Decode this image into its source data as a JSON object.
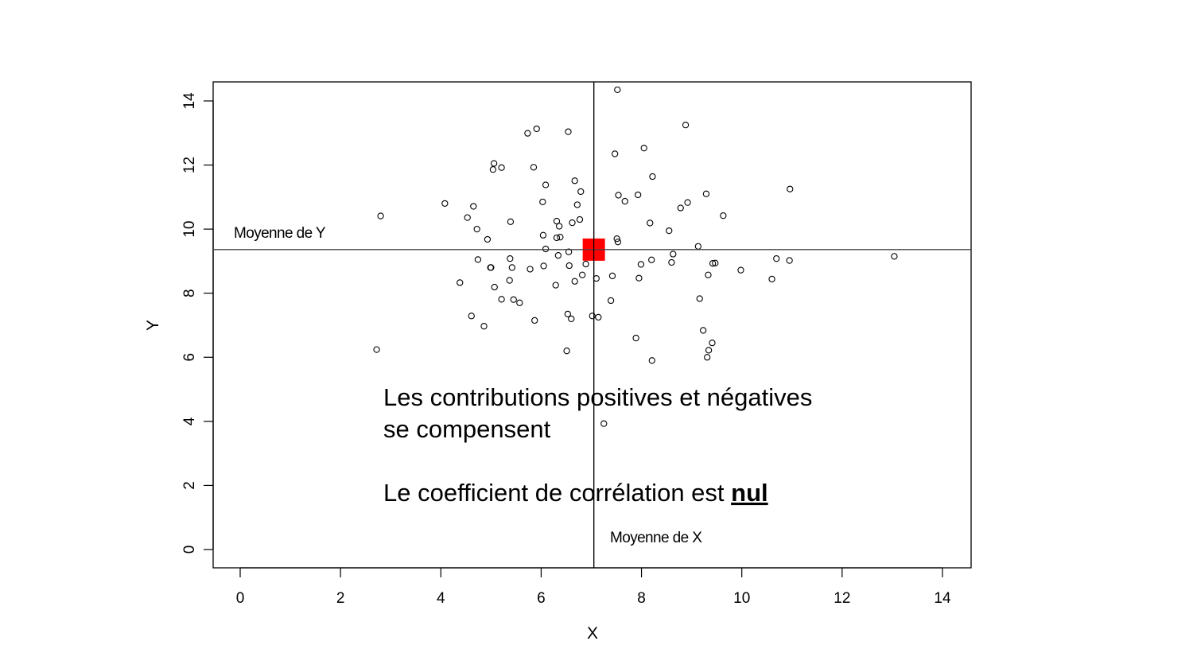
{
  "chart_data": {
    "type": "scatter",
    "title": "",
    "xlabel": "X",
    "ylabel": "Y",
    "xlim": [
      -0.5,
      14.5
    ],
    "ylim": [
      -0.5,
      14.5
    ],
    "xticks": [
      0,
      2,
      4,
      6,
      8,
      10,
      12,
      14
    ],
    "yticks": [
      0,
      2,
      4,
      6,
      8,
      10,
      12,
      14
    ],
    "grid": false,
    "mean_x": 7.05,
    "mean_y": 9.36,
    "mean_x_label": "Moyenne de X",
    "mean_y_label": "Moyenne de Y",
    "mean_point_color": "#ff0000",
    "annotation_line1": "Les contributions positives et négatives",
    "annotation_line2": "se compensent",
    "annotation_line3_prefix": "Le coefficient de corrélation est ",
    "annotation_line3_emphasis": "nul",
    "points": [
      [
        7.52,
        14.35
      ],
      [
        8.88,
        13.25
      ],
      [
        5.91,
        13.13
      ],
      [
        5.73,
        12.99
      ],
      [
        6.54,
        13.04
      ],
      [
        5.06,
        12.05
      ],
      [
        5.21,
        11.92
      ],
      [
        5.04,
        11.86
      ],
      [
        5.85,
        11.93
      ],
      [
        7.47,
        12.35
      ],
      [
        8.05,
        12.53
      ],
      [
        8.22,
        11.64
      ],
      [
        6.67,
        11.51
      ],
      [
        6.09,
        11.38
      ],
      [
        6.79,
        11.17
      ],
      [
        7.54,
        11.06
      ],
      [
        7.67,
        10.87
      ],
      [
        7.93,
        11.07
      ],
      [
        9.29,
        11.1
      ],
      [
        10.96,
        11.25
      ],
      [
        4.08,
        10.8
      ],
      [
        4.65,
        10.71
      ],
      [
        6.03,
        10.85
      ],
      [
        6.72,
        10.76
      ],
      [
        8.78,
        10.66
      ],
      [
        8.92,
        10.83
      ],
      [
        2.8,
        10.41
      ],
      [
        4.53,
        10.36
      ],
      [
        5.39,
        10.23
      ],
      [
        6.31,
        10.25
      ],
      [
        6.62,
        10.2
      ],
      [
        6.77,
        10.3
      ],
      [
        8.17,
        10.19
      ],
      [
        9.63,
        10.42
      ],
      [
        4.72,
        10.0
      ],
      [
        6.36,
        10.09
      ],
      [
        8.55,
        9.95
      ],
      [
        4.93,
        9.68
      ],
      [
        6.04,
        9.81
      ],
      [
        6.31,
        9.73
      ],
      [
        6.38,
        9.75
      ],
      [
        7.51,
        9.7
      ],
      [
        7.53,
        9.6
      ],
      [
        9.13,
        9.46
      ],
      [
        6.09,
        9.38
      ],
      [
        6.55,
        9.29
      ],
      [
        6.34,
        9.18
      ],
      [
        8.63,
        9.22
      ],
      [
        4.74,
        9.05
      ],
      [
        5.38,
        9.08
      ],
      [
        6.89,
        8.91
      ],
      [
        7.99,
        8.9
      ],
      [
        8.2,
        9.04
      ],
      [
        9.42,
        8.93
      ],
      [
        9.47,
        8.94
      ],
      [
        10.69,
        9.08
      ],
      [
        10.95,
        9.02
      ],
      [
        13.04,
        9.15
      ],
      [
        4.99,
        8.8
      ],
      [
        5.0,
        8.8
      ],
      [
        5.42,
        8.8
      ],
      [
        5.78,
        8.75
      ],
      [
        6.05,
        8.85
      ],
      [
        6.56,
        8.86
      ],
      [
        8.6,
        8.96
      ],
      [
        9.98,
        8.72
      ],
      [
        6.82,
        8.57
      ],
      [
        7.42,
        8.54
      ],
      [
        9.33,
        8.57
      ],
      [
        7.1,
        8.46
      ],
      [
        7.95,
        8.47
      ],
      [
        10.6,
        8.44
      ],
      [
        4.38,
        8.33
      ],
      [
        5.37,
        8.4
      ],
      [
        6.67,
        8.37
      ],
      [
        5.07,
        8.19
      ],
      [
        6.29,
        8.25
      ],
      [
        5.21,
        7.81
      ],
      [
        5.45,
        7.8
      ],
      [
        5.57,
        7.7
      ],
      [
        7.39,
        7.77
      ],
      [
        9.16,
        7.83
      ],
      [
        4.61,
        7.29
      ],
      [
        5.87,
        7.15
      ],
      [
        6.53,
        7.35
      ],
      [
        6.6,
        7.2
      ],
      [
        7.02,
        7.29
      ],
      [
        7.14,
        7.25
      ],
      [
        4.86,
        6.97
      ],
      [
        9.23,
        6.84
      ],
      [
        7.89,
        6.6
      ],
      [
        9.41,
        6.45
      ],
      [
        2.72,
        6.24
      ],
      [
        6.51,
        6.2
      ],
      [
        9.34,
        6.22
      ],
      [
        9.31,
        6.0
      ],
      [
        8.21,
        5.9
      ],
      [
        7.25,
        3.93
      ]
    ]
  }
}
